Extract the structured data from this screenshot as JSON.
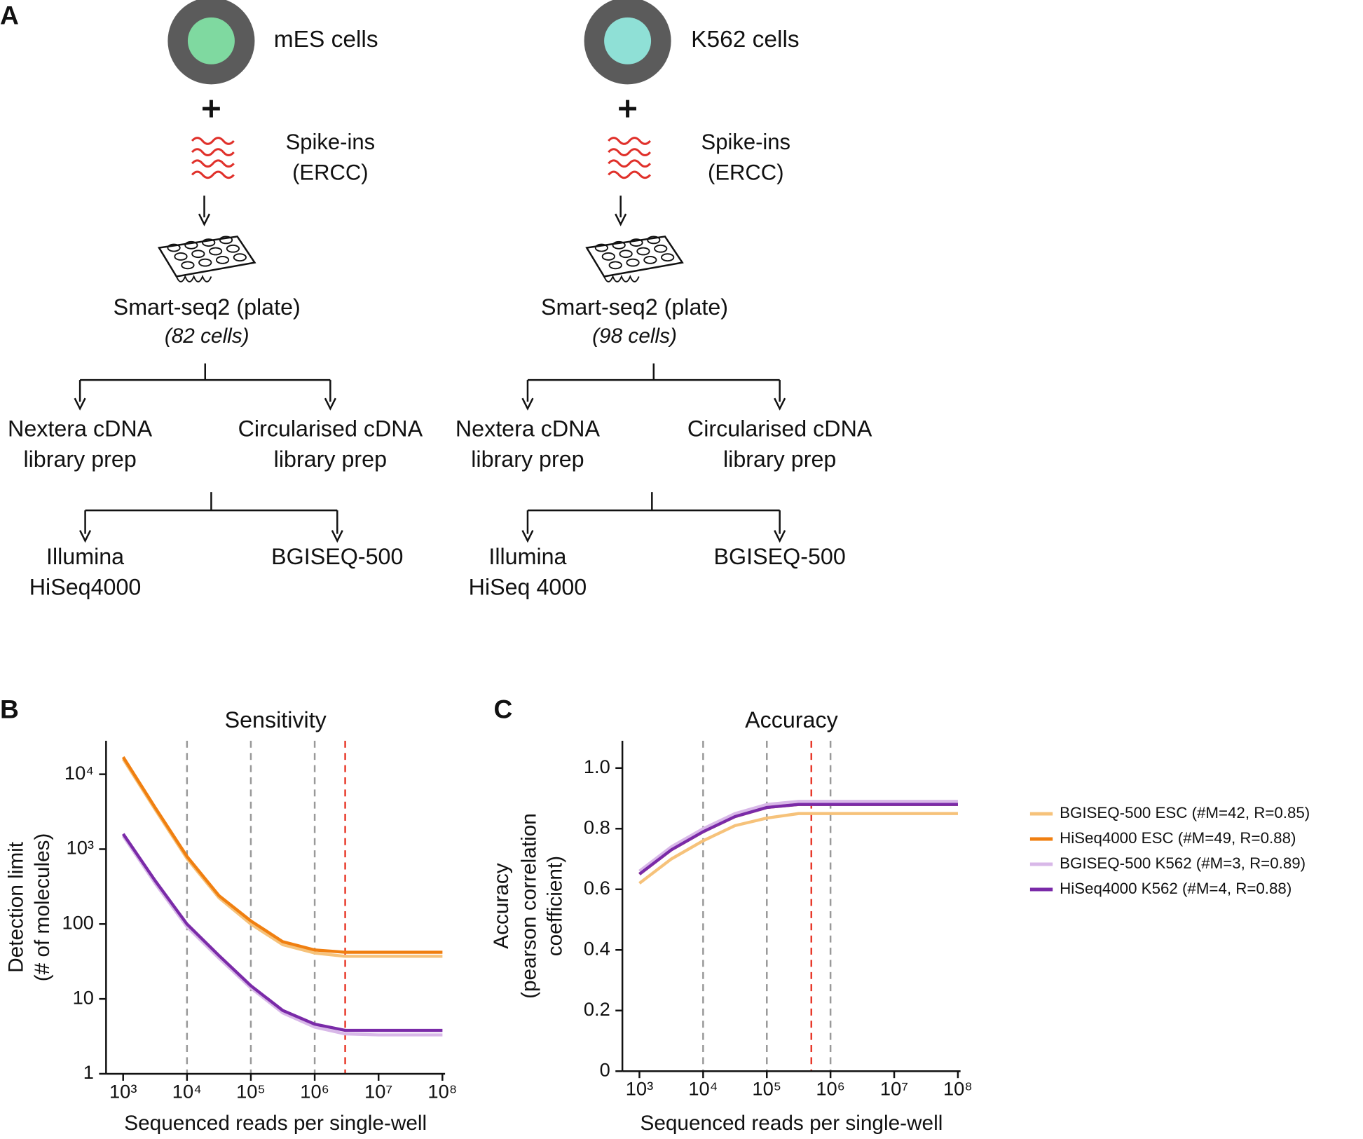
{
  "diagram": {
    "panel": "A",
    "columns": [
      {
        "cell": "mES cells",
        "cell_color": "#7fd9a0",
        "spike": [
          "Spike-ins",
          "(ERCC)"
        ],
        "protocol": "Smart-seq2 (plate)",
        "count": "(82 cells)",
        "preps": [
          [
            "Nextera cDNA",
            "library prep"
          ],
          [
            "Circularised cDNA",
            "library prep"
          ]
        ],
        "platforms": [
          [
            "Illumina",
            "HiSeq4000"
          ],
          [
            "BGISEQ-500"
          ]
        ]
      },
      {
        "cell": "K562 cells",
        "cell_color": "#8fe0d6",
        "spike": [
          "Spike-ins",
          "(ERCC)"
        ],
        "protocol": "Smart-seq2 (plate)",
        "count": "(98 cells)",
        "preps": [
          [
            "Nextera cDNA",
            "library prep"
          ],
          [
            "Circularised cDNA",
            "library prep"
          ]
        ],
        "platforms": [
          [
            "Illumina",
            "HiSeq 4000"
          ],
          [
            "BGISEQ-500"
          ]
        ]
      }
    ]
  },
  "chart_data": [
    {
      "type": "line",
      "panel": "B",
      "title": "Sensitivity",
      "xlabel": "Sequenced reads per single-well",
      "ylabel": [
        "Detection limit",
        "(# of molecules)"
      ],
      "xlog": true,
      "ylog": true,
      "x": [
        1000,
        3162,
        10000,
        31623,
        100000,
        316228,
        1000000,
        3000000,
        10000000,
        100000000
      ],
      "series": [
        {
          "color": "#f6c27a",
          "values": [
            16000,
            3400,
            750,
            225,
            100,
            53,
            41,
            37,
            37,
            37
          ]
        },
        {
          "color": "#f07f10",
          "values": [
            17000,
            3600,
            800,
            240,
            110,
            58,
            45,
            42,
            42,
            42
          ]
        },
        {
          "color": "#d8b8e8",
          "values": [
            1500,
            350,
            92,
            35,
            14,
            6.5,
            4.2,
            3.4,
            3.3,
            3.3
          ]
        },
        {
          "color": "#7a2aa8",
          "values": [
            1600,
            380,
            100,
            38,
            15,
            7,
            4.6,
            3.8,
            3.8,
            3.8
          ]
        }
      ],
      "xlim": [
        540,
        110000000
      ],
      "ylim": [
        1,
        28000
      ],
      "xticks": [
        {
          "value": 1000,
          "label": "10³"
        },
        {
          "value": 10000,
          "label": "10⁴"
        },
        {
          "value": 100000,
          "label": "10⁵"
        },
        {
          "value": 1000000,
          "label": "10⁶"
        },
        {
          "value": 10000000,
          "label": "10⁷"
        },
        {
          "value": 100000000,
          "label": "10⁸"
        }
      ],
      "yticks": [
        1,
        10,
        100,
        {
          "value": 1000,
          "label": "10³"
        },
        {
          "value": 10000,
          "label": "10⁴"
        }
      ],
      "vlines": [
        {
          "x": 10000,
          "color": "#999999"
        },
        {
          "x": 100000,
          "color": "#999999"
        },
        {
          "x": 1000000,
          "color": "#999999"
        },
        {
          "x": 3000000,
          "color": "#e8392a"
        }
      ]
    },
    {
      "type": "line",
      "panel": "C",
      "title": "Accuracy",
      "xlabel": "Sequenced reads per single-well",
      "ylabel": [
        "Accuracy",
        "(pearson correlation",
        "coefficient)"
      ],
      "xlog": true,
      "ylog": false,
      "legend": "outside-right",
      "x": [
        1000,
        3162,
        10000,
        31623,
        100000,
        316228,
        500000,
        1000000,
        10000000,
        100000000
      ],
      "series": [
        {
          "name": "BGISEQ-500 ESC (#M=42, R=0.85)",
          "color": "#f6c27a",
          "values": [
            0.62,
            0.7,
            0.76,
            0.81,
            0.835,
            0.85,
            0.85,
            0.85,
            0.85,
            0.85
          ]
        },
        {
          "name": "HiSeq4000 ESC (#M=49, R=0.88)",
          "color": "#f07f10",
          "values": [
            0.65,
            0.73,
            0.79,
            0.84,
            0.87,
            0.88,
            0.88,
            0.88,
            0.88,
            0.88
          ]
        },
        {
          "name": "BGISEQ-500  K562 (#M=3, R=0.89)",
          "color": "#d8b8e8",
          "values": [
            0.66,
            0.74,
            0.8,
            0.85,
            0.88,
            0.89,
            0.89,
            0.89,
            0.89,
            0.89
          ]
        },
        {
          "name": "HiSeq4000 K562 (#M=4, R=0.88)",
          "color": "#7a2aa8",
          "values": [
            0.65,
            0.73,
            0.79,
            0.84,
            0.87,
            0.88,
            0.88,
            0.88,
            0.88,
            0.88
          ]
        }
      ],
      "xlim": [
        540,
        110000000
      ],
      "ylim": [
        0,
        1.09
      ],
      "xticks": [
        {
          "value": 1000,
          "label": "10³"
        },
        {
          "value": 10000,
          "label": "10⁴"
        },
        {
          "value": 100000,
          "label": "10⁵"
        },
        {
          "value": 1000000,
          "label": "10⁶"
        },
        {
          "value": 10000000,
          "label": "10⁷"
        },
        {
          "value": 100000000,
          "label": "10⁸"
        }
      ],
      "yticks": [
        0,
        0.2,
        0.4,
        0.6,
        0.8,
        {
          "value": 1,
          "label": "1.0"
        }
      ],
      "vlines": [
        {
          "x": 10000,
          "color": "#999999"
        },
        {
          "x": 100000,
          "color": "#999999"
        },
        {
          "x": 500000,
          "color": "#e8392a"
        },
        {
          "x": 1000000,
          "color": "#999999"
        }
      ]
    }
  ]
}
